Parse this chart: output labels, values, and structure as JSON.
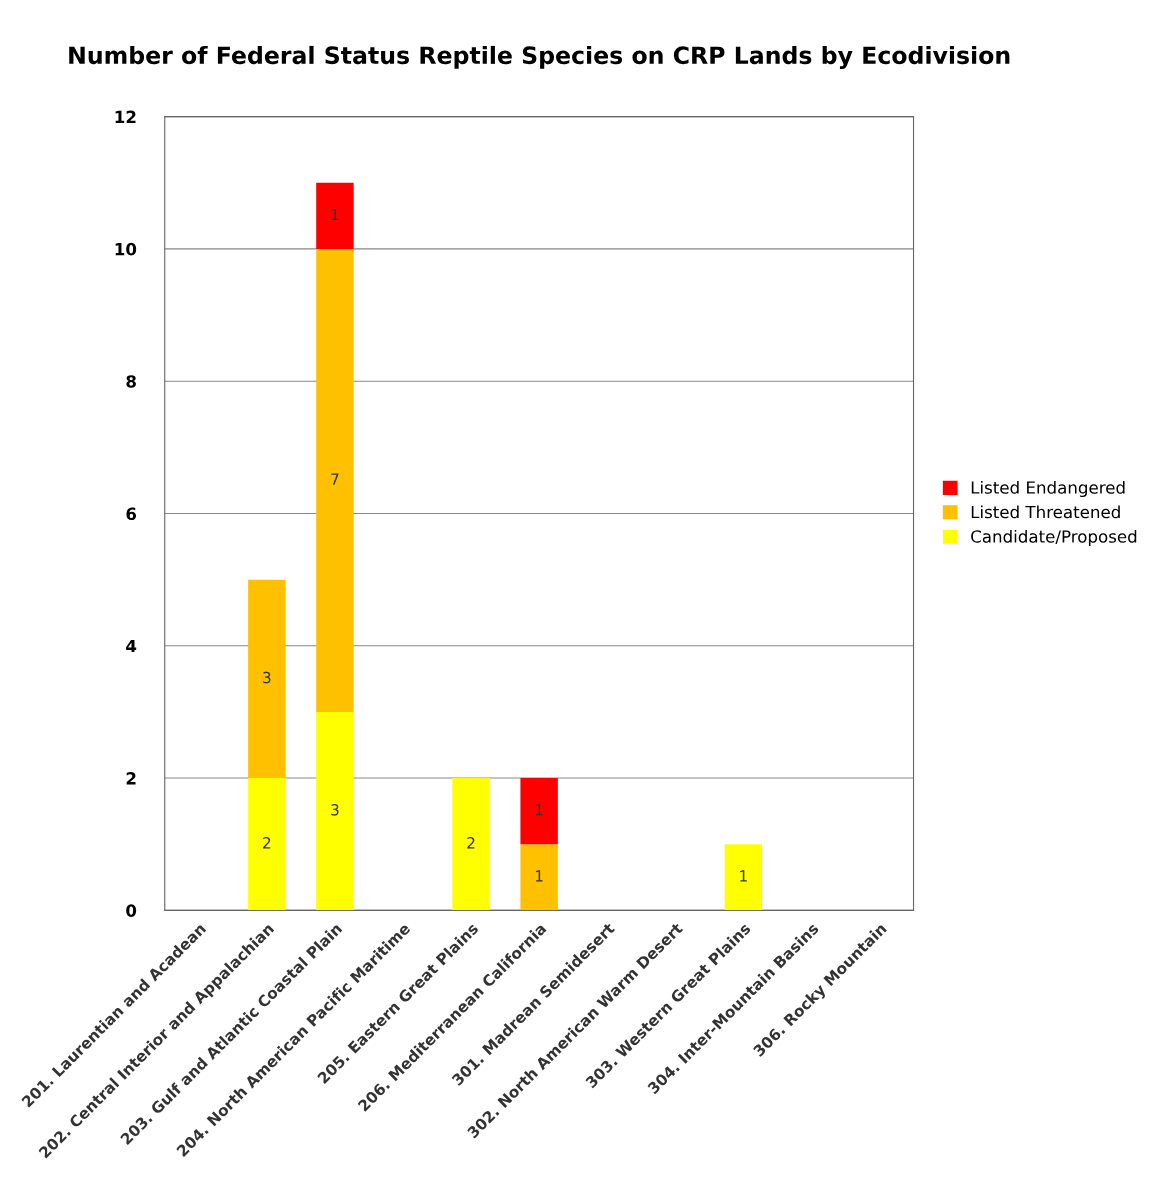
{
  "chart_data": {
    "type": "bar",
    "title": "Number of Federal Status Reptile Species on CRP Lands by Ecodivision",
    "categories": [
      "201. Laurentian and Acadean",
      "202. Central Interior and Appalachian",
      "203. Gulf and Atlantic Coastal Plain",
      "204. North American Pacific Maritime",
      "205. Eastern Great Plains",
      "206. Mediterranean California",
      "301. Madrean Semidesert",
      "302. North American Warm Desert",
      "303. Western Great Plains",
      "304. Inter-Mountain Basins",
      "306. Rocky Mountain"
    ],
    "stacked": true,
    "series": [
      {
        "name": "Candidate/Proposed",
        "color": "#ffff00",
        "values": [
          null,
          2,
          3,
          null,
          2,
          null,
          null,
          null,
          1,
          null,
          null
        ],
        "value_labels": [
          null,
          "2",
          "3",
          null,
          "2",
          null,
          null,
          null,
          "1",
          null,
          null
        ]
      },
      {
        "name": "Listed Threatened",
        "color": "#ffc000",
        "values": [
          null,
          3,
          7,
          null,
          null,
          1,
          null,
          null,
          null,
          null,
          null
        ],
        "value_labels": [
          null,
          "3",
          "7",
          null,
          null,
          "1",
          null,
          null,
          null,
          null,
          null
        ]
      },
      {
        "name": "Listed Endangered",
        "color": "#ff0000",
        "values": [
          null,
          null,
          1,
          null,
          null,
          1,
          null,
          null,
          null,
          null,
          null
        ],
        "value_labels": [
          null,
          null,
          "1",
          null,
          null,
          "1",
          null,
          null,
          null,
          null,
          null
        ]
      }
    ],
    "ylim": [
      0,
      12
    ],
    "yticks": [
      0,
      2,
      4,
      6,
      8,
      10,
      12
    ],
    "grid": "y",
    "legend": "right"
  }
}
